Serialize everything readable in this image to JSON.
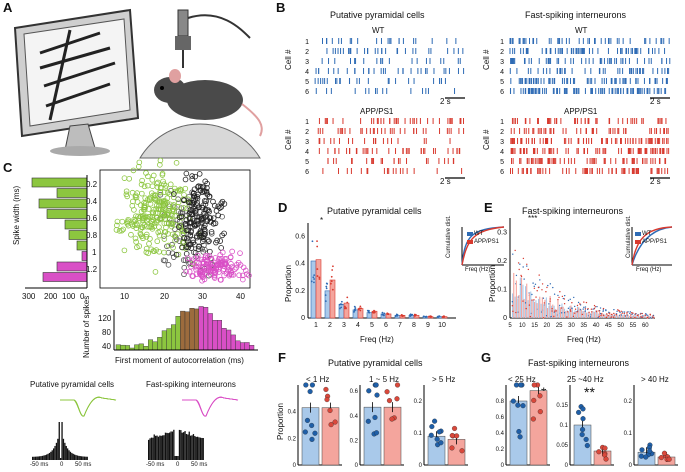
{
  "panels": {
    "A": "A",
    "B": "B",
    "C": "C",
    "D": "D",
    "E": "E",
    "F": "F",
    "G": "G"
  },
  "colors": {
    "wt": "#2e6bb5",
    "app": "#d83a2f",
    "green": "#8cc63f",
    "pink": "#d94fc6",
    "brown": "#9c6b3d",
    "black": "#222222",
    "bar_wt": "#a9c9ea",
    "bar_app": "#f4a59d"
  },
  "panel_b": {
    "left_title": "Putative pyramidal cells",
    "right_title": "Fast-spiking interneurons",
    "wt_label": "WT",
    "app_label": "APP/PS1",
    "ylabel": "Cell #",
    "rows": [
      "1",
      "2",
      "3",
      "4",
      "5",
      "6"
    ],
    "scalebar": "2 s"
  },
  "panel_c": {
    "ylabel_hist": "Spike width (ms)",
    "hist_ticks_x": [
      "300",
      "200",
      "100",
      "0"
    ],
    "scatter_yticks": [
      "0.2",
      "0.4",
      "0.6",
      "0.8",
      "1",
      "1.2"
    ],
    "scatter_xticks": [
      "10",
      "20",
      "30",
      "40"
    ],
    "hist2_ylabel": "Number of spikes",
    "hist2_yticks": [
      "40",
      "80",
      "120"
    ],
    "hist2_xlabel": "First moment of autocorrelation (ms)",
    "wave_left_title": "Putative pyramidal cells",
    "wave_right_title": "Fast-spiking interneurons",
    "acg_ticks": [
      "-50 ms",
      "0",
      "50 ms"
    ],
    "acg_ticks_right": [
      "-50 ms",
      "0",
      "50 ms"
    ]
  },
  "panel_d": {
    "title": "Putative pyramidal cells",
    "ylabel": "Proportion",
    "xlabel": "Freq (Hz)",
    "yticks": [
      "0",
      "0.2",
      "0.4",
      "0.6"
    ],
    "xticks": [
      "1",
      "2",
      "3",
      "4",
      "5",
      "6",
      "7",
      "8",
      "9",
      "10"
    ],
    "inset_ylabel": "Cumulative dist.",
    "inset_xlabel": "Freq (Hz)",
    "inset_xticks": [
      "0",
      "5",
      "10"
    ],
    "inset_yticks": [
      "0",
      "1"
    ],
    "legend": [
      "WT",
      "APP/PS1"
    ],
    "sig": "*"
  },
  "panel_e": {
    "title": "Fast-spiking interneurons",
    "ylabel": "Proportion",
    "xlabel": "Freq (Hz)",
    "yticks": [
      "0",
      "0.1",
      "0.2",
      "0.3"
    ],
    "xticks": [
      "5",
      "10",
      "15",
      "20",
      "25",
      "30",
      "35",
      "40",
      "45",
      "50",
      "55",
      "60"
    ],
    "inset_ylabel": "Cumulative dist.",
    "inset_xlabel": "Freq (Hz)",
    "inset_xticks": [
      "0",
      "20",
      "40",
      "60"
    ],
    "inset_yticks": [
      "0",
      "1"
    ],
    "legend": [
      "WT",
      "APP/PS1"
    ],
    "sig": "***"
  },
  "panel_f": {
    "title": "Putative pyramidal cells",
    "ylabel": "Proportion",
    "subplots": [
      {
        "label": "< 1 Hz",
        "yticks": [
          "0",
          "0.2",
          "0.4"
        ]
      },
      {
        "label": "1 ~ 5 Hz",
        "yticks": [
          "0",
          "0.2",
          "0.4",
          "0.6"
        ]
      },
      {
        "label": "> 5 Hz",
        "yticks": [
          "0",
          "0.1",
          "0.2"
        ]
      }
    ]
  },
  "panel_g": {
    "title": "Fast-spiking interneurons",
    "subplots": [
      {
        "label": "< 25 Hz",
        "yticks": [
          "0",
          "0.2",
          "0.4",
          "0.6",
          "0.8"
        ],
        "sig": "*"
      },
      {
        "label": "25 ~40 Hz",
        "yticks": [
          "0",
          "0.05",
          "0.1",
          "0.15"
        ],
        "sig": "**"
      },
      {
        "label": "> 40 Hz",
        "yticks": [
          "0",
          "0.1",
          "0.2"
        ]
      }
    ]
  },
  "chart_data": [
    {
      "type": "bar",
      "title": "Putative pyramidal cells",
      "xlabel": "Freq (Hz)",
      "ylabel": "Proportion",
      "categories": [
        "1",
        "2",
        "3",
        "4",
        "5",
        "6",
        "7",
        "8",
        "9",
        "10"
      ],
      "series": [
        {
          "name": "WT",
          "values": [
            0.42,
            0.2,
            0.1,
            0.06,
            0.04,
            0.03,
            0.02,
            0.02,
            0.01,
            0.01
          ]
        },
        {
          "name": "APP/PS1",
          "values": [
            0.43,
            0.28,
            0.11,
            0.07,
            0.05,
            0.03,
            0.02,
            0.02,
            0.01,
            0.01
          ]
        }
      ],
      "ylim": [
        0,
        0.7
      ]
    },
    {
      "type": "bar",
      "title": "< 1 Hz",
      "ylabel": "Proportion",
      "categories": [
        "WT",
        "APP/PS1"
      ],
      "values": [
        0.43,
        0.43
      ],
      "ylim": [
        0,
        0.6
      ]
    },
    {
      "type": "bar",
      "title": "1 ~ 5 Hz",
      "categories": [
        "WT",
        "APP/PS1"
      ],
      "values": [
        0.47,
        0.47
      ],
      "ylim": [
        0,
        0.65
      ]
    },
    {
      "type": "bar",
      "title": "> 5 Hz",
      "categories": [
        "WT",
        "APP/PS1"
      ],
      "values": [
        0.09,
        0.08
      ],
      "ylim": [
        0,
        0.25
      ]
    },
    {
      "type": "bar",
      "title": "< 25 Hz",
      "categories": [
        "WT",
        "APP/PS1"
      ],
      "values": [
        0.8,
        0.93
      ],
      "ylim": [
        0,
        1.0
      ]
    },
    {
      "type": "bar",
      "title": "25 ~40 Hz",
      "categories": [
        "WT",
        "APP/PS1"
      ],
      "values": [
        0.1,
        0.035
      ],
      "ylim": [
        0,
        0.2
      ]
    },
    {
      "type": "bar",
      "title": "> 40 Hz",
      "categories": [
        "WT",
        "APP/PS1"
      ],
      "values": [
        0.04,
        0.025
      ],
      "ylim": [
        0,
        0.25
      ]
    }
  ]
}
